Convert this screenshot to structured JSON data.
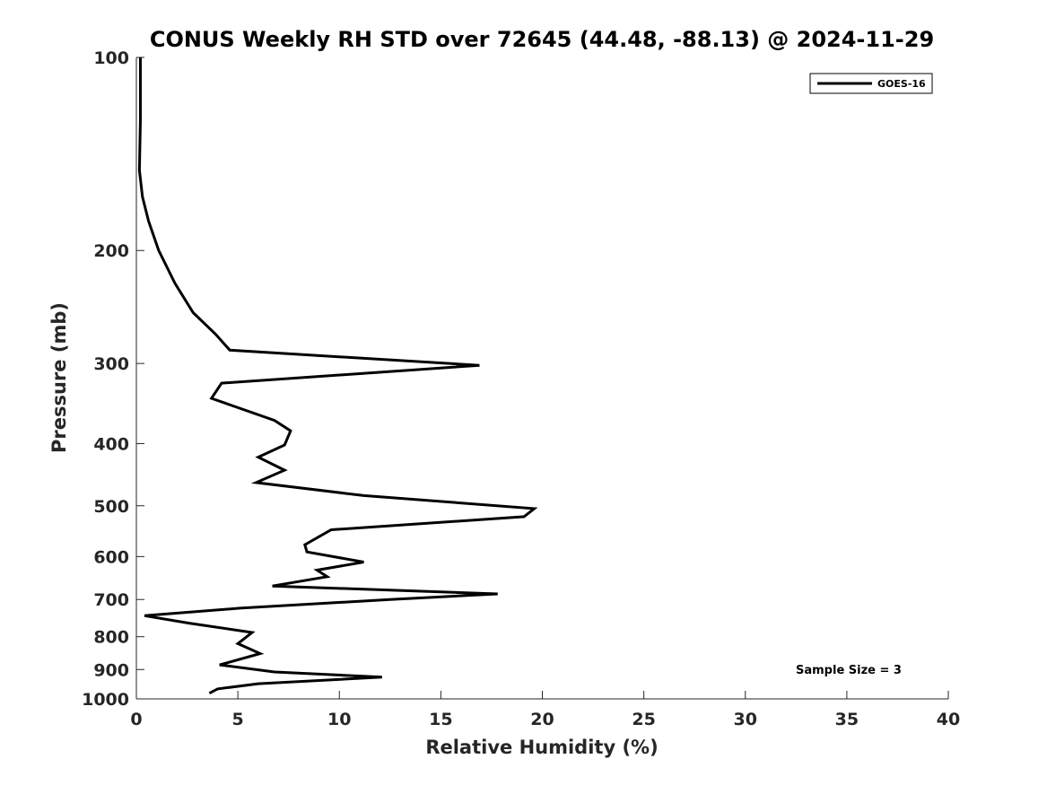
{
  "chart_data": {
    "type": "line",
    "title": "CONUS Weekly RH STD over 72645 (44.48, -88.13) @ 2024-11-29",
    "xlabel": "Relative Humidity (%)",
    "ylabel": "Pressure (mb)",
    "xlim": [
      0,
      40
    ],
    "ylim": [
      1000,
      100
    ],
    "yscale": "log",
    "xticks": [
      0,
      5,
      10,
      15,
      20,
      25,
      30,
      35,
      40
    ],
    "yticks": [
      100,
      200,
      300,
      400,
      500,
      600,
      700,
      800,
      900,
      1000
    ],
    "legend_position": "top-right",
    "grid": false,
    "series": [
      {
        "name": "GOES-16",
        "color": "#000000",
        "points": [
          [
            0.2,
            100
          ],
          [
            0.2,
            125
          ],
          [
            0.15,
            150
          ],
          [
            0.3,
            165
          ],
          [
            0.6,
            180
          ],
          [
            1.1,
            200
          ],
          [
            1.9,
            225
          ],
          [
            2.8,
            250
          ],
          [
            3.9,
            270
          ],
          [
            4.6,
            286
          ],
          [
            16.9,
            302
          ],
          [
            4.2,
            322
          ],
          [
            3.7,
            340
          ],
          [
            6.8,
            368
          ],
          [
            7.6,
            382
          ],
          [
            7.3,
            402
          ],
          [
            6.0,
            420
          ],
          [
            7.3,
            440
          ],
          [
            5.9,
            460
          ],
          [
            11.2,
            482
          ],
          [
            19.6,
            505
          ],
          [
            19.1,
            520
          ],
          [
            9.6,
            545
          ],
          [
            8.3,
            575
          ],
          [
            8.4,
            590
          ],
          [
            11.2,
            612
          ],
          [
            8.9,
            630
          ],
          [
            9.4,
            645
          ],
          [
            6.7,
            667
          ],
          [
            17.8,
            686
          ],
          [
            12.5,
            700
          ],
          [
            5.1,
            722
          ],
          [
            0.4,
            742
          ],
          [
            2.6,
            762
          ],
          [
            5.7,
            788
          ],
          [
            5.0,
            820
          ],
          [
            6.1,
            850
          ],
          [
            4.1,
            885
          ],
          [
            6.8,
            908
          ],
          [
            12.1,
            925
          ],
          [
            6.0,
            947
          ],
          [
            4.0,
            965
          ],
          [
            3.6,
            980
          ]
        ]
      }
    ],
    "annotation": "Sample Size = 3"
  }
}
